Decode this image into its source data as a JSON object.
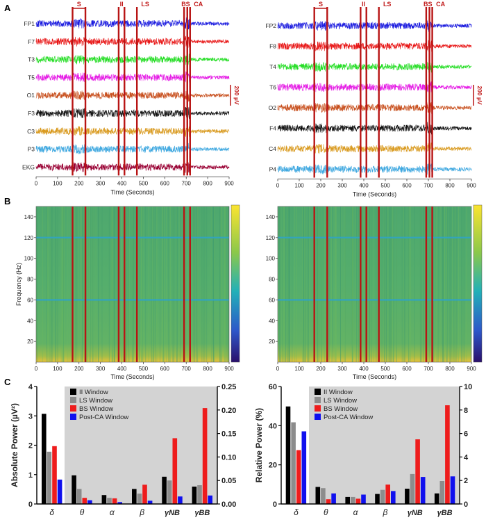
{
  "panel_labels": [
    "A",
    "B",
    "C"
  ],
  "colors": {
    "marker": "#b81414",
    "marker_label": "#c01818",
    "shade": "#d3d3d3",
    "bar_series": [
      "#000000",
      "#8c8c8c",
      "#ee1c1c",
      "#1010ee"
    ],
    "trace": {
      "FP1": "#1a1adf",
      "F7": "#e81515",
      "T3": "#22dd22",
      "T5": "#e51ae5",
      "O1": "#c8501e",
      "F3": "#111111",
      "C3": "#d99a1f",
      "P3": "#3fa8e0",
      "EKG": "#990033",
      "FP2": "#1a1adf",
      "F8": "#e81515",
      "T4": "#22dd22",
      "T6": "#e51ae5",
      "O2": "#c8501e",
      "F4": "#111111",
      "C4": "#d99a1f",
      "P4": "#3fa8e0"
    }
  },
  "chart_data": [
    {
      "type": "line",
      "panel": "A-left",
      "xlabel": "Time (Seconds)",
      "xlim": [
        0,
        900
      ],
      "xticks": [
        0,
        100,
        200,
        300,
        400,
        500,
        600,
        700,
        800,
        900
      ],
      "channels": [
        "FP1",
        "F7",
        "T3",
        "T5",
        "O1",
        "F3",
        "C3",
        "P3",
        "EKG"
      ],
      "scale_bar": "200 µV",
      "window_markers": [
        {
          "label": "S",
          "start": 170,
          "end": 230
        },
        {
          "label": "II",
          "start": 385,
          "end": 412
        },
        {
          "label": "LS",
          "start": 470
        },
        {
          "label": "BS",
          "start": 690,
          "end": 705
        },
        {
          "label": "CA",
          "start": 718
        }
      ]
    },
    {
      "type": "line",
      "panel": "A-right",
      "xlabel": "Time (Seconds)",
      "xlim": [
        0,
        900
      ],
      "xticks": [
        0,
        100,
        200,
        300,
        400,
        500,
        600,
        700,
        800,
        900
      ],
      "channels": [
        "FP2",
        "F8",
        "T4",
        "T6",
        "O2",
        "F4",
        "C4",
        "P4"
      ],
      "scale_bar": "200 µV",
      "window_markers": [
        {
          "label": "S",
          "start": 170,
          "end": 230
        },
        {
          "label": "II",
          "start": 385,
          "end": 412
        },
        {
          "label": "LS",
          "start": 470
        },
        {
          "label": "BS",
          "start": 690,
          "end": 705
        },
        {
          "label": "CA",
          "start": 718
        }
      ]
    },
    {
      "type": "heatmap",
      "panel": "B-left",
      "xlabel": "Time (Seconds)",
      "ylabel": "Frequency (Hz)",
      "xlim": [
        0,
        900
      ],
      "ylim": [
        0,
        150
      ],
      "xticks": [
        0,
        100,
        200,
        300,
        400,
        500,
        600,
        700,
        800,
        900
      ],
      "yticks": [
        20,
        40,
        60,
        80,
        100,
        120,
        140
      ],
      "markers": [
        170,
        230,
        385,
        412,
        470,
        690,
        718
      ]
    },
    {
      "type": "heatmap",
      "panel": "B-right",
      "xlabel": "Time (Seconds)",
      "ylabel": "",
      "xlim": [
        0,
        900
      ],
      "ylim": [
        0,
        150
      ],
      "xticks": [
        0,
        100,
        200,
        300,
        400,
        500,
        600,
        700,
        800,
        900
      ],
      "yticks": [
        20,
        40,
        60,
        80,
        100,
        120,
        140
      ],
      "markers": [
        170,
        230,
        385,
        412,
        470,
        690,
        718
      ]
    },
    {
      "type": "bar",
      "panel": "C-left",
      "ylabel": "Absolute Power (µV²)",
      "categories": [
        "δ",
        "θ",
        "α",
        "β",
        "γNB",
        "γBB"
      ],
      "ylim": [
        0,
        4
      ],
      "yticks": [
        0,
        1,
        2,
        3,
        4
      ],
      "y2lim": [
        0,
        0.25
      ],
      "y2ticks": [
        "0.00",
        "0.05",
        "0.10",
        "0.15",
        "0.20",
        "0.25"
      ],
      "legend": [
        "II Window",
        "LS Window",
        "BS Window",
        "Post-CA Window"
      ],
      "series": [
        {
          "name": "II Window",
          "left_axis": [
            3.07
          ],
          "right_axis": [
            0.061,
            0.019,
            0.032,
            0.058,
            0.037
          ]
        },
        {
          "name": "LS Window",
          "left_axis": [
            1.78
          ],
          "right_axis": [
            0.032,
            0.013,
            0.022,
            0.05,
            0.04
          ]
        },
        {
          "name": "BS Window",
          "left_axis": [
            1.97
          ],
          "right_axis": [
            0.013,
            0.012,
            0.041,
            0.14,
            0.204
          ]
        },
        {
          "name": "Post-CA Window",
          "left_axis": [
            0.83
          ],
          "right_axis": [
            0.008,
            0.004,
            0.007,
            0.016,
            0.018
          ]
        }
      ]
    },
    {
      "type": "bar",
      "panel": "C-right",
      "ylabel": "Relative  Power (%)",
      "categories": [
        "δ",
        "θ",
        "α",
        "β",
        "γNB",
        "γBB"
      ],
      "ylim": [
        0,
        60
      ],
      "yticks": [
        0,
        20,
        40,
        60
      ],
      "y2lim": [
        0,
        10
      ],
      "y2ticks": [
        0,
        2,
        4,
        6,
        8,
        10
      ],
      "legend": [
        "II Window",
        "LS Window",
        "BS Window",
        "Post-CA Window"
      ],
      "series": [
        {
          "name": "II Window",
          "left_axis": [
            49.8
          ],
          "right_axis": [
            1.45,
            0.6,
            0.85,
            1.3,
            0.9
          ]
        },
        {
          "name": "LS Window",
          "left_axis": [
            41.7
          ],
          "right_axis": [
            1.35,
            0.6,
            1.2,
            2.55,
            1.95
          ]
        },
        {
          "name": "BS Window",
          "left_axis": [
            27.5
          ],
          "right_axis": [
            0.4,
            0.45,
            1.65,
            5.5,
            8.4
          ]
        },
        {
          "name": "Post-CA Window",
          "left_axis": [
            37.1
          ],
          "right_axis": [
            0.9,
            0.8,
            1.1,
            2.3,
            2.35
          ]
        }
      ]
    }
  ]
}
